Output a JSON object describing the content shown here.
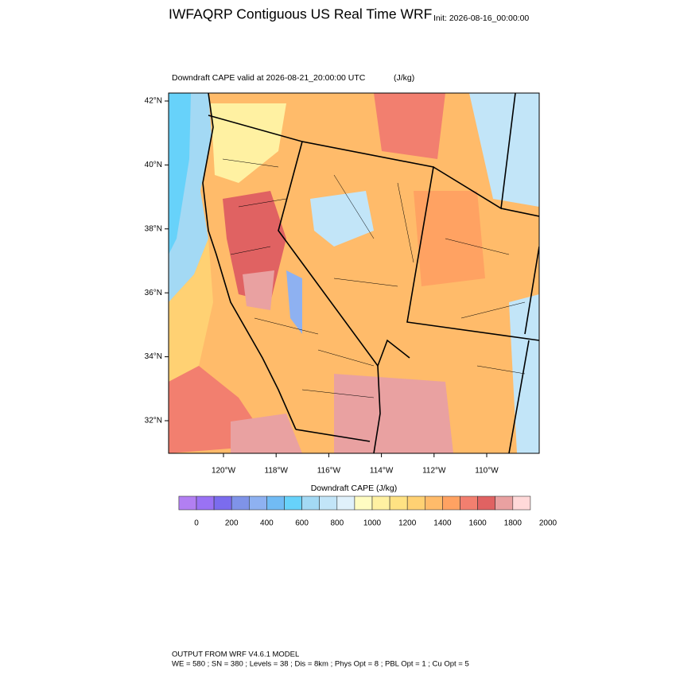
{
  "header": {
    "title": "IWFAQRP Contiguous US Real Time WRF",
    "init": "Init: 2026-08-16_00:00:00"
  },
  "map": {
    "subtitle": "Downdraft CAPE valid at 2026-08-21_20:00:00 UTC",
    "units": "(J/kg)",
    "lat_labels": [
      "42°N",
      "40°N",
      "38°N",
      "36°N",
      "34°N",
      "32°N"
    ],
    "lon_labels": [
      "120°W",
      "118°W",
      "116°W",
      "114°W",
      "112°W",
      "110°W"
    ]
  },
  "colorbar": {
    "title": "Downdraft CAPE  (J/kg)",
    "labels": [
      0,
      200,
      400,
      600,
      800,
      1000,
      1200,
      1400,
      1600,
      1800,
      2000
    ],
    "colors": [
      "#b27ff2",
      "#9a72f4",
      "#7b6cee",
      "#7f93e8",
      "#8eb1f1",
      "#71bbf4",
      "#67d2fa",
      "#a3d9f4",
      "#c2e5f8",
      "#e0f1fb",
      "#fffcc2",
      "#fff1a2",
      "#ffe283",
      "#ffd173",
      "#ffbb6a",
      "#ffa262",
      "#f27f6f",
      "#e06262",
      "#e9a1a1",
      "#ffd9d9"
    ]
  },
  "footer": {
    "model": "OUTPUT FROM WRF V4.6.1 MODEL",
    "settings": "WE = 580 ; SN = 380 ; Levels = 38 ; Dis = 8km ; Phys Opt = 8 ; PBL Opt = 1 ; Cu Opt = 5"
  }
}
